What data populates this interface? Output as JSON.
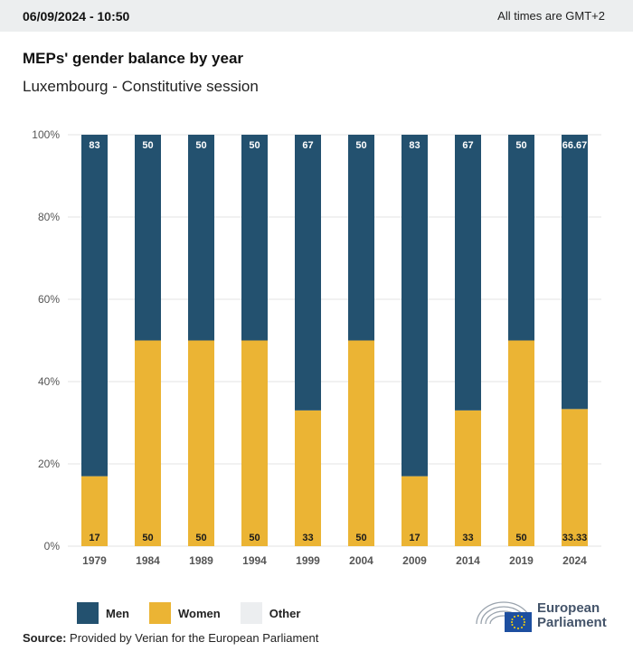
{
  "header": {
    "timestamp": "06/09/2024 - 10:50",
    "timezone_note": "All times are GMT+2"
  },
  "title": "MEPs' gender balance by year",
  "subtitle": "Luxembourg - Constitutive session",
  "colors": {
    "men": "#23516f",
    "women": "#ebb434",
    "other": "#eceef0",
    "grid": "#e3e3e3"
  },
  "legend": [
    {
      "key": "men",
      "label": "Men"
    },
    {
      "key": "women",
      "label": "Women"
    },
    {
      "key": "other",
      "label": "Other"
    }
  ],
  "chart_data": {
    "type": "bar",
    "stacked": true,
    "categories": [
      "1979",
      "1984",
      "1989",
      "1994",
      "1999",
      "2004",
      "2009",
      "2014",
      "2019",
      "2024"
    ],
    "series": [
      {
        "name": "Women",
        "values": [
          17,
          50,
          50,
          50,
          33,
          50,
          17,
          33,
          50,
          33.33
        ]
      },
      {
        "name": "Men",
        "values": [
          83,
          50,
          50,
          50,
          67,
          50,
          83,
          67,
          50,
          66.67
        ]
      }
    ],
    "y_ticks": [
      "0%",
      "20%",
      "40%",
      "60%",
      "80%",
      "100%"
    ],
    "ylim": [
      0,
      100
    ],
    "grid": true,
    "legend_position": "bottom-left"
  },
  "source": {
    "label": "Source:",
    "text": "Provided by Verian for the European Parliament"
  },
  "logo": {
    "line1": "European",
    "line2": "Parliament"
  }
}
